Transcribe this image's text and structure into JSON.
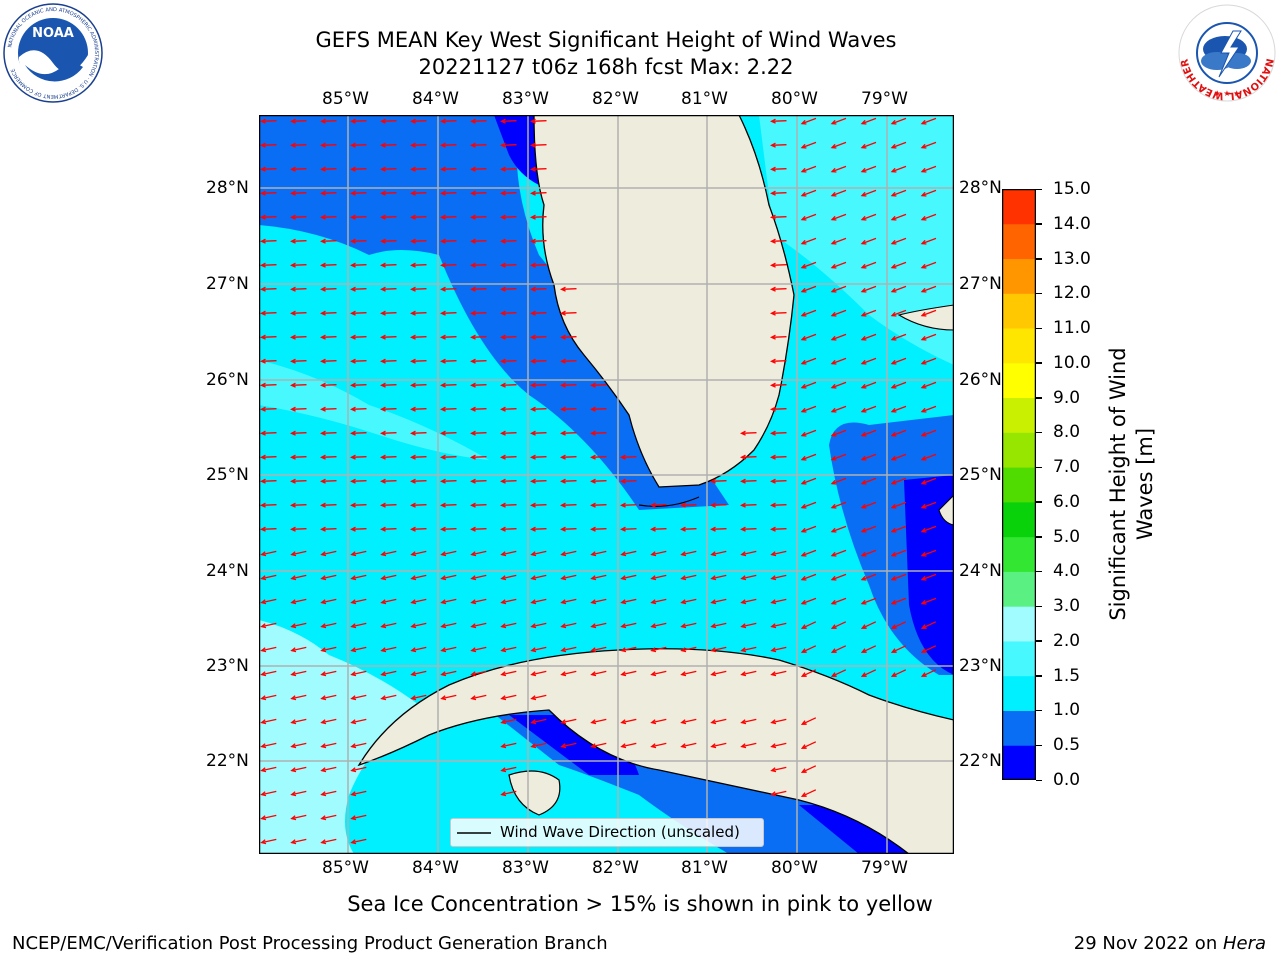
{
  "header": {
    "title_line1": "GEFS MEAN Key West Significant Height of Wind Waves",
    "title_line2": "20221127 t06z 168h fcst   Max: 2.22"
  },
  "logos": {
    "left": "NOAA",
    "left_ring": "NATIONAL OCEANIC AND ATMOSPHERIC ADMINISTRATION · U.S. DEPARTMENT OF COMMERCE",
    "right_ring": "NATIONAL WEATHER SERVICE"
  },
  "map": {
    "lon_labels": [
      "85°W",
      "84°W",
      "83°W",
      "82°W",
      "81°W",
      "80°W",
      "79°W"
    ],
    "lat_labels": [
      "28°N",
      "27°N",
      "26°N",
      "25°N",
      "24°N",
      "23°N",
      "22°N"
    ],
    "legend_label": "Wind Wave Direction (unscaled)",
    "arrow_color": "#ff0000",
    "land_color": "#eeecdc"
  },
  "colorbar": {
    "label": "Significant Height of Wind Waves [m]",
    "ticks": [
      "0.0",
      "0.5",
      "1.0",
      "1.5",
      "2.0",
      "3.0",
      "4.0",
      "5.0",
      "6.0",
      "7.0",
      "8.0",
      "9.0",
      "10.0",
      "11.0",
      "12.0",
      "13.0",
      "14.0",
      "15.0"
    ],
    "colors": [
      "#0000ff",
      "#0a6ef5",
      "#00f0ff",
      "#48f8ff",
      "#a0fcff",
      "#5af082",
      "#32e632",
      "#0ad20a",
      "#50dc00",
      "#96e600",
      "#c8f000",
      "#ffff00",
      "#ffe600",
      "#ffc800",
      "#ff9600",
      "#ff6400",
      "#ff3200",
      "#ff0000"
    ]
  },
  "notes": {
    "ice": "Sea Ice Concentration > 15% is shown in pink to yellow",
    "credit": "NCEP/EMC/Verification Post Processing Product Generation Branch",
    "date": "29 Nov 2022 on ",
    "host": "Hera"
  }
}
